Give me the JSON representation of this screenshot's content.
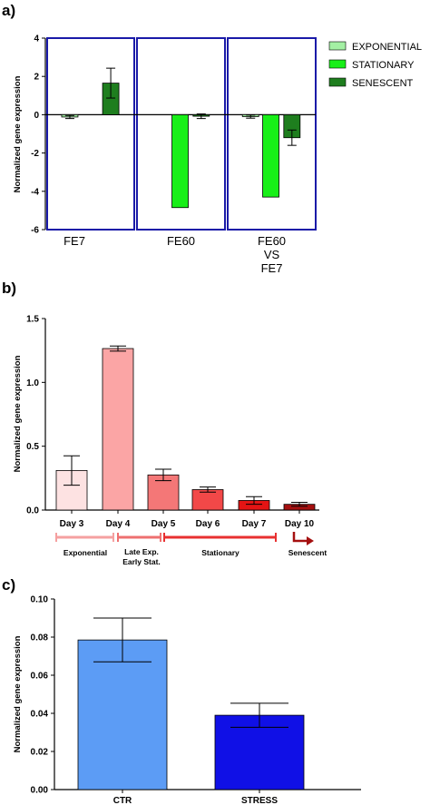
{
  "panels": {
    "a": "a)",
    "b": "b)",
    "c": "c)"
  },
  "chart_data": [
    {
      "type": "bar",
      "ylabel": "Normalized gene expression",
      "ylim": [
        -6,
        4
      ],
      "yticks": [
        "4",
        "2",
        "0",
        "-2",
        "-4",
        "-6"
      ],
      "groups": [
        {
          "label_lines": [
            "FE7"
          ]
        },
        {
          "label_lines": [
            "FE60"
          ]
        },
        {
          "label_lines": [
            "FE60",
            "VS",
            "FE7"
          ]
        }
      ],
      "series": [
        {
          "name": "EXPONENTIAL",
          "color": "#a4f0a4",
          "values": [
            -0.12,
            null,
            -0.1
          ],
          "errors": [
            0.08,
            null,
            0.08
          ]
        },
        {
          "name": "STATIONARY",
          "color": "#18ef18",
          "values": [
            null,
            -4.85,
            -4.3
          ],
          "errors": [
            null,
            0.0,
            0.0
          ]
        },
        {
          "name": "SENESCENT",
          "color": "#1e7e1e",
          "values": [
            1.65,
            -0.08,
            -1.2
          ],
          "errors": [
            0.78,
            0.12,
            0.4
          ]
        }
      ],
      "legend_position": "right"
    },
    {
      "type": "bar",
      "ylabel": "Normalized gene expression",
      "ylim": [
        0,
        1.5
      ],
      "yticks": [
        "1.5",
        "1.0",
        "0.5",
        "0.0"
      ],
      "categories": [
        "Day 3",
        "Day 4",
        "Day 5",
        "Day 6",
        "Day 7",
        "Day 10"
      ],
      "values": [
        0.31,
        1.265,
        0.275,
        0.16,
        0.075,
        0.045
      ],
      "errors": [
        0.115,
        0.02,
        0.045,
        0.02,
        0.03,
        0.015
      ],
      "colors": [
        "#fde2e2",
        "#fba5a5",
        "#f47777",
        "#f24848",
        "#e41414",
        "#a51010"
      ],
      "phases": [
        {
          "lines": [
            "Exponential"
          ],
          "color": "#f5a0a0"
        },
        {
          "lines": [
            "Late Exp.",
            "Early Stat."
          ],
          "color": "#ee7070"
        },
        {
          "lines": [
            "Stationary"
          ],
          "color": "#e83030"
        },
        {
          "lines": [
            "Senescent"
          ],
          "color": "#a51010"
        }
      ]
    },
    {
      "type": "bar",
      "ylabel": "Normalized gene expression",
      "ylim": [
        0,
        0.1
      ],
      "yticks": [
        "0.10",
        "0.08",
        "0.06",
        "0.04",
        "0.02",
        "0.00"
      ],
      "categories": [
        "CTR",
        "STRESS"
      ],
      "values": [
        0.0785,
        0.039
      ],
      "errors": [
        0.0115,
        0.0063
      ],
      "colors": [
        "#5c9cf5",
        "#1010e6"
      ]
    }
  ]
}
